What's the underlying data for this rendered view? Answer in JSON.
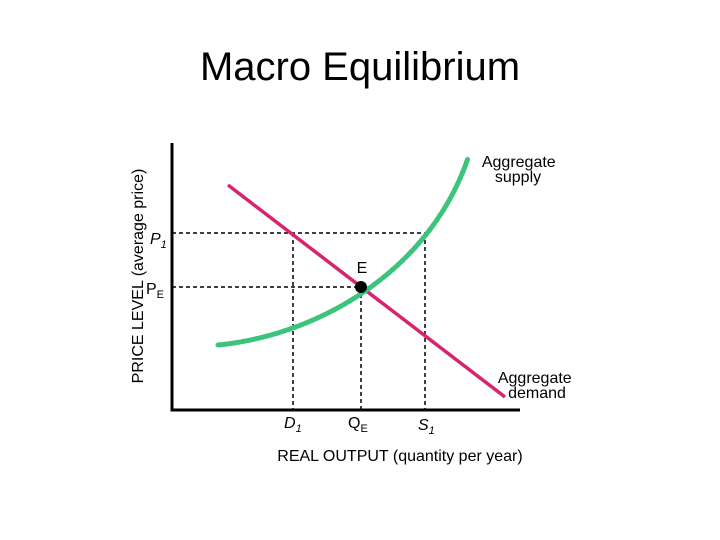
{
  "header": {
    "title": "Macro Equilibrium"
  },
  "axes": {
    "y_label": "PRICE LEVEL (average price)",
    "x_label": "REAL OUTPUT (quantity per year)"
  },
  "curves": {
    "supply": [
      "Aggregate",
      "supply"
    ],
    "demand": [
      "Aggregate",
      "demand"
    ]
  },
  "points": {
    "equilibrium": "E"
  },
  "y_markers": [
    {
      "label": "P",
      "subscript": "1"
    },
    {
      "label": "P",
      "subscript": "E"
    }
  ],
  "x_markers": [
    {
      "label": "D",
      "subscript": "1"
    },
    {
      "label": "Q",
      "subscript": "E"
    },
    {
      "label": "S",
      "subscript": "1"
    }
  ]
}
